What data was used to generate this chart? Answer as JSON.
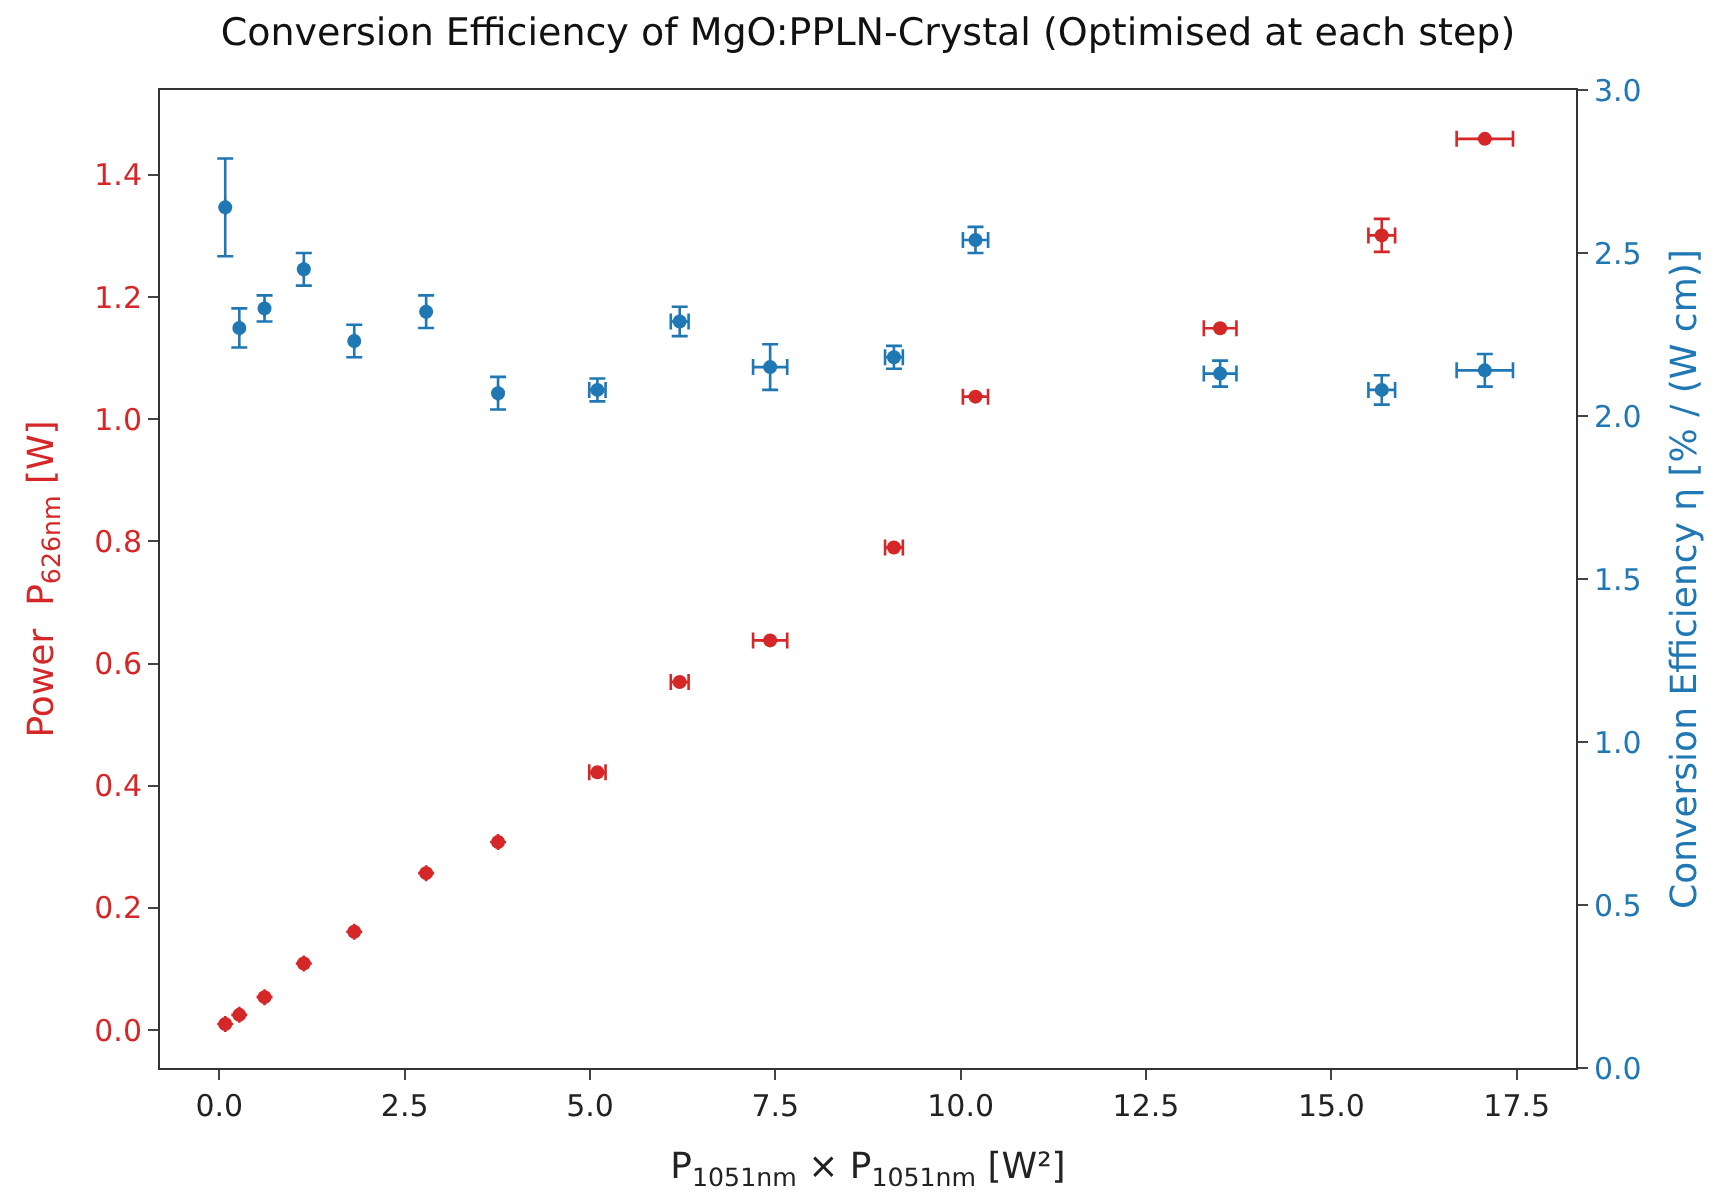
{
  "chart_data": {
    "type": "scatter",
    "title": "Conversion Efficiency of MgO:PPLN-Crystal (Optimised at each step)",
    "xlabel": "P$_{1051nm}$ × P$_{1051nm}$ [W²]",
    "ylabel": "Power  P$_{626nm}$ [W]",
    "y2label": "Conversion Efficiency η [% / (W cm)]",
    "x": [
      0.08,
      0.27,
      0.61,
      1.14,
      1.82,
      2.79,
      3.76,
      5.1,
      6.21,
      7.43,
      9.1,
      10.2,
      13.5,
      15.68,
      17.07
    ],
    "series": [
      {
        "color": "#d62728",
        "values": [
          0.01,
          0.025,
          0.054,
          0.109,
          0.161,
          0.257,
          0.308,
          0.422,
          0.57,
          0.638,
          0.79,
          1.037,
          1.149,
          1.301,
          1.459
        ],
        "errors": [
          null,
          null,
          null,
          null,
          null,
          null,
          null,
          null,
          null,
          null,
          null,
          null,
          null,
          0.027,
          null
        ],
        "xerrors": [
          null,
          null,
          null,
          null,
          null,
          null,
          null,
          0.11,
          0.12,
          0.23,
          0.12,
          0.17,
          0.22,
          0.18,
          0.38
        ]
      },
      {
        "color": "#1f77b4",
        "axis": "y2",
        "values": [
          2.64,
          2.27,
          2.33,
          2.45,
          2.23,
          2.32,
          2.07,
          2.08,
          2.29,
          2.15,
          2.18,
          2.54,
          2.13,
          2.08,
          2.14
        ],
        "errors": [
          0.15,
          0.06,
          0.04,
          0.05,
          0.05,
          0.05,
          0.05,
          0.035,
          0.045,
          0.07,
          0.035,
          0.04,
          0.04,
          0.045,
          0.05
        ],
        "xerrors": [
          null,
          null,
          null,
          null,
          null,
          null,
          null,
          0.11,
          0.12,
          0.23,
          0.12,
          0.17,
          0.22,
          0.18,
          0.38
        ]
      }
    ],
    "xlim": [
      -0.8,
      18.3
    ],
    "xticks": [
      {
        "value": 0,
        "label": "0.0"
      },
      2.5,
      {
        "value": 5,
        "label": "5.0"
      },
      7.5,
      {
        "value": 10,
        "label": "10.0"
      },
      12.5,
      {
        "value": 15,
        "label": "15.0"
      },
      17.5
    ],
    "ylim": [
      -0.062,
      1.539
    ],
    "yticks": [
      {
        "value": 0,
        "label": "0.0"
      },
      0.2,
      0.4,
      0.6,
      0.8,
      {
        "value": 1,
        "label": "1.0"
      },
      1.2,
      1.4
    ],
    "y2lim": [
      0,
      3
    ],
    "y2ticks": [
      {
        "value": 0,
        "label": "0.0"
      },
      0.5,
      {
        "value": 1,
        "label": "1.0"
      },
      1.5,
      {
        "value": 2,
        "label": "2.0"
      },
      2.5,
      {
        "value": 3,
        "label": "3.0"
      }
    ],
    "marker": "circle"
  }
}
